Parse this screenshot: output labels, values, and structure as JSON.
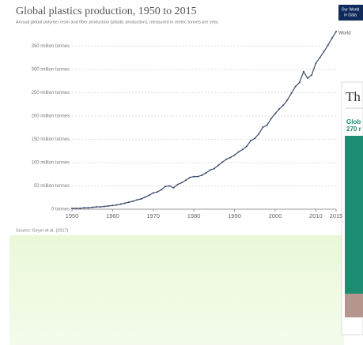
{
  "logo": [
    "Our World",
    "in Data"
  ],
  "side_panel": {
    "title": "Th",
    "subtitle_lines": [
      "Glob",
      "270 r"
    ]
  },
  "chart_data": {
    "type": "line",
    "title": "Global plastics production, 1950 to 2015",
    "subtitle": "Annual global polymer resin and fiber production (plastic production), measured in metric tonnes per year.",
    "source": "Source: Geyer et al. (2017)",
    "x": [
      1950,
      1951,
      1952,
      1953,
      1954,
      1955,
      1956,
      1957,
      1958,
      1959,
      1960,
      1961,
      1962,
      1963,
      1964,
      1965,
      1966,
      1967,
      1968,
      1969,
      1970,
      1971,
      1972,
      1973,
      1974,
      1975,
      1976,
      1977,
      1978,
      1979,
      1980,
      1981,
      1982,
      1983,
      1984,
      1985,
      1986,
      1987,
      1988,
      1989,
      1990,
      1991,
      1992,
      1993,
      1994,
      1995,
      1996,
      1997,
      1998,
      1999,
      2000,
      2001,
      2002,
      2003,
      2004,
      2005,
      2006,
      2007,
      2008,
      2009,
      2010,
      2011,
      2012,
      2013,
      2014,
      2015
    ],
    "series": [
      {
        "name": "World",
        "color": "#3b4c6b",
        "values": [
          2,
          2,
          2,
          3,
          3,
          4,
          5,
          5,
          6,
          7,
          8,
          9,
          11,
          13,
          15,
          17,
          20,
          22,
          26,
          30,
          35,
          37,
          42,
          49,
          50,
          46,
          53,
          57,
          62,
          68,
          70,
          70,
          73,
          78,
          84,
          87,
          94,
          101,
          107,
          111,
          116,
          123,
          128,
          135,
          147,
          152,
          162,
          176,
          180,
          194,
          205,
          215,
          223,
          234,
          249,
          263,
          272,
          295,
          281,
          288,
          313,
          325,
          338,
          352,
          367,
          381
        ]
      }
    ],
    "xlim": [
      1950,
      2015
    ],
    "xticks": [
      1950,
      1960,
      1970,
      1980,
      1990,
      2000,
      2010,
      2015
    ],
    "ylim": [
      0,
      381
    ],
    "yticks": [
      {
        "value": 0,
        "label": "0 tonnes"
      },
      {
        "value": 50,
        "label": "50 million tonnes"
      },
      {
        "value": 100,
        "label": "100 million tonnes"
      },
      {
        "value": 150,
        "label": "150 million tonnes"
      },
      {
        "value": 200,
        "label": "200 million tonnes"
      },
      {
        "value": 250,
        "label": "250 million tonnes"
      },
      {
        "value": 300,
        "label": "300 million tonnes"
      },
      {
        "value": 350,
        "label": "350 million tonnes"
      }
    ],
    "grid": true
  }
}
